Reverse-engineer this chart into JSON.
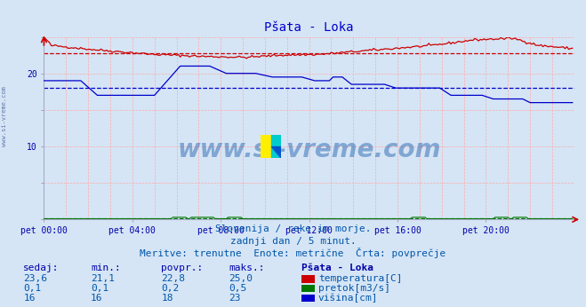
{
  "title": "Pšata - Loka",
  "bg_color": "#d5e5f5",
  "title_color": "#0000cc",
  "text_color": "#0055aa",
  "label_color": "#0000aa",
  "xlim": [
    0,
    288
  ],
  "ylim": [
    0,
    25
  ],
  "xtick_labels": [
    "pet 00:00",
    "pet 04:00",
    "pet 08:00",
    "pet 12:00",
    "pet 16:00",
    "pet 20:00"
  ],
  "xtick_positions": [
    0,
    48,
    96,
    144,
    192,
    240
  ],
  "ytick_labels": [
    "",
    "",
    "10",
    "",
    "20",
    ""
  ],
  "ytick_positions": [
    0,
    5,
    10,
    15,
    20,
    25
  ],
  "temp_color": "#cc0000",
  "flow_color": "#007700",
  "height_color": "#0000cc",
  "avg_temp": 22.8,
  "avg_flow": 0.2,
  "avg_height": 18.0,
  "subtitle1": "Slovenija / reke in morje.",
  "subtitle2": "zadnji dan / 5 minut.",
  "subtitle3": "Meritve: trenutne  Enote: metrične  Črta: povprečje",
  "table_headers": [
    "sedaj:",
    "min.:",
    "povpr.:",
    "maks.:",
    "Pšata - Loka"
  ],
  "table_row1": [
    "23,6",
    "21,1",
    "22,8",
    "25,0",
    "temperatura[C]"
  ],
  "table_row2": [
    "0,1",
    "0,1",
    "0,2",
    "0,5",
    "pretok[m3/s]"
  ],
  "table_row3": [
    "16",
    "16",
    "18",
    "23",
    "višina[cm]"
  ],
  "watermark": "www.si-vreme.com",
  "side_label": "www.si-vreme.com",
  "logo_colors": [
    "#ffee00",
    "#00cccc",
    "#0055cc"
  ]
}
